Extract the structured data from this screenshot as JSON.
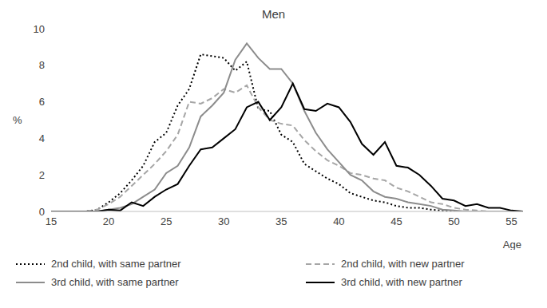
{
  "chart_data": {
    "type": "line",
    "title": "Men",
    "x_label": "Age",
    "y_label": "%",
    "x": [
      15,
      16,
      17,
      18,
      19,
      20,
      21,
      22,
      23,
      24,
      25,
      26,
      27,
      28,
      29,
      30,
      31,
      32,
      33,
      34,
      35,
      36,
      37,
      38,
      39,
      40,
      41,
      42,
      43,
      44,
      45,
      46,
      47,
      48,
      49,
      50,
      51,
      52,
      53,
      54,
      55,
      56
    ],
    "xlim": [
      15,
      56
    ],
    "xticks": [
      15,
      20,
      25,
      30,
      35,
      40,
      45,
      50,
      55
    ],
    "ylim": [
      0,
      10
    ],
    "yticks": [
      0,
      2,
      4,
      6,
      8,
      10
    ],
    "grid": false,
    "legend": "bottom",
    "series": [
      {
        "name": "2nd child, with same partner",
        "color": "#000000",
        "line_style": "dotted",
        "values": [
          0,
          0,
          0,
          0,
          0.1,
          0.5,
          1.0,
          1.7,
          2.5,
          3.8,
          4.3,
          5.8,
          6.7,
          8.6,
          8.5,
          8.4,
          7.7,
          8.2,
          5.6,
          5.5,
          4.2,
          3.8,
          2.6,
          2.2,
          1.8,
          1.5,
          1.0,
          0.8,
          0.6,
          0.5,
          0.3,
          0.2,
          0.2,
          0.1,
          0.05,
          0,
          0,
          0,
          0,
          0,
          0,
          0
        ]
      },
      {
        "name": "2nd child, with new partner",
        "color": "#a6a6a6",
        "line_style": "dashed",
        "values": [
          0,
          0,
          0,
          0,
          0.1,
          0.4,
          0.8,
          1.4,
          2.0,
          2.6,
          3.3,
          4.2,
          6.0,
          5.9,
          6.2,
          6.7,
          6.5,
          6.9,
          5.7,
          5.0,
          4.8,
          4.7,
          3.9,
          3.3,
          2.8,
          2.5,
          2.1,
          2.0,
          1.8,
          1.7,
          1.3,
          1.1,
          0.8,
          0.5,
          0.4,
          0.2,
          0.1,
          0.05,
          0,
          0,
          0,
          0
        ]
      },
      {
        "name": "3rd child, with same partner",
        "color": "#8c8c8c",
        "line_style": "solid",
        "values": [
          0,
          0,
          0,
          0,
          0,
          0.1,
          0.2,
          0.4,
          0.8,
          1.2,
          2.1,
          2.5,
          3.5,
          5.2,
          5.8,
          6.5,
          8.3,
          9.2,
          8.4,
          7.8,
          7.8,
          7.0,
          5.5,
          4.3,
          3.4,
          2.7,
          2.0,
          1.7,
          1.1,
          0.8,
          0.7,
          0.5,
          0.4,
          0.3,
          0.1,
          0.05,
          0,
          0,
          0,
          0,
          0,
          0
        ]
      },
      {
        "name": "3rd child, with new partner",
        "color": "#000000",
        "line_style": "solid",
        "values": [
          0,
          0,
          0,
          0,
          0,
          0.1,
          0.05,
          0.5,
          0.3,
          0.8,
          1.2,
          1.5,
          2.5,
          3.4,
          3.5,
          4.0,
          4.5,
          5.7,
          6.0,
          5.0,
          5.7,
          7.0,
          5.6,
          5.5,
          5.9,
          5.7,
          4.9,
          3.7,
          3.1,
          3.8,
          2.5,
          2.4,
          2.0,
          1.4,
          0.7,
          0.6,
          0.3,
          0.4,
          0.2,
          0.2,
          0.05,
          0
        ]
      }
    ]
  }
}
